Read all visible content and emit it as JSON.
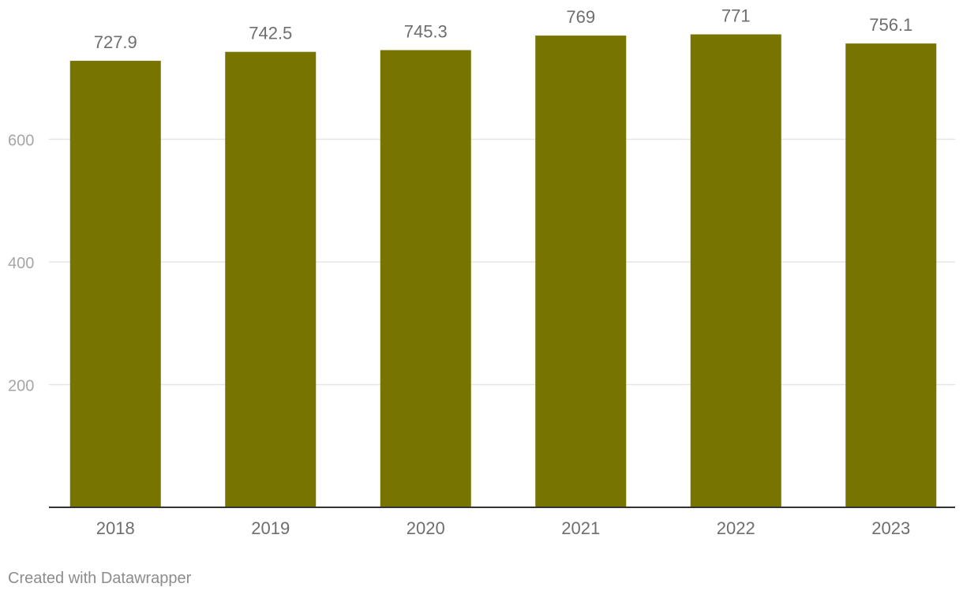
{
  "chart_data": {
    "type": "bar",
    "categories": [
      "2018",
      "2019",
      "2020",
      "2021",
      "2022",
      "2023"
    ],
    "values": [
      727.9,
      742.5,
      745.3,
      769,
      771,
      756.1
    ],
    "value_labels": [
      "727.9",
      "742.5",
      "745.3",
      "769",
      "771",
      "756.1"
    ],
    "title": "",
    "xlabel": "",
    "ylabel": "",
    "ylim": [
      0,
      800
    ],
    "yticks": [
      200,
      400,
      600
    ],
    "ytick_labels": [
      "200",
      "400",
      "600"
    ],
    "grid": true,
    "legend": "none",
    "colors": {
      "bar": "#787400",
      "grid": "#e6e6e6",
      "axis": "#333333",
      "tick_text": "#a6a6a6",
      "category_text": "#6e6e6e",
      "label_text": "#6e6e6e"
    }
  },
  "footer": {
    "credit": "Created with Datawrapper"
  }
}
